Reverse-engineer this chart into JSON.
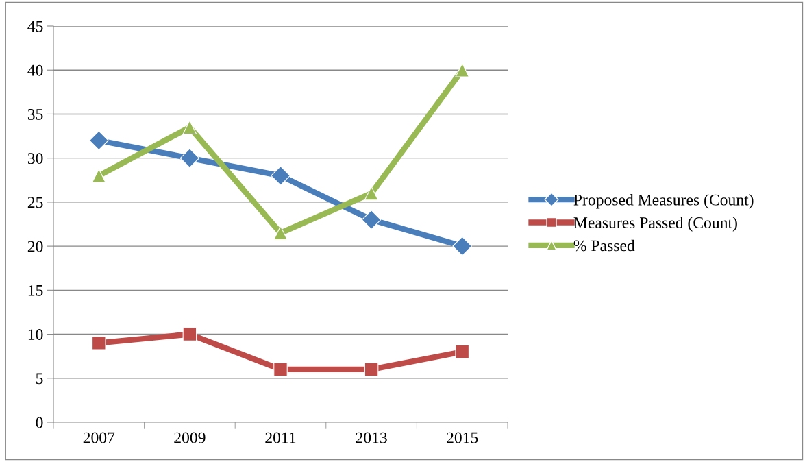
{
  "chart_data": {
    "type": "line",
    "categories": [
      "2007",
      "2009",
      "2011",
      "2013",
      "2015"
    ],
    "series": [
      {
        "name": "Proposed Measures (Count)",
        "color": "#4a7ebb",
        "marker": "diamond",
        "values": [
          32,
          30,
          28,
          23,
          20
        ]
      },
      {
        "name": "Measures Passed (Count)",
        "color": "#be4b48",
        "marker": "square",
        "values": [
          9,
          10,
          6,
          6,
          8
        ]
      },
      {
        "name": "% Passed",
        "color": "#98b954",
        "marker": "triangle",
        "values": [
          28,
          33.5,
          21.5,
          26,
          40
        ]
      }
    ],
    "ylim": [
      0,
      45
    ],
    "yticks": [
      0,
      5,
      10,
      15,
      20,
      25,
      30,
      35,
      40,
      45
    ],
    "grid": "y",
    "legend": "right",
    "line_style": "solid"
  }
}
